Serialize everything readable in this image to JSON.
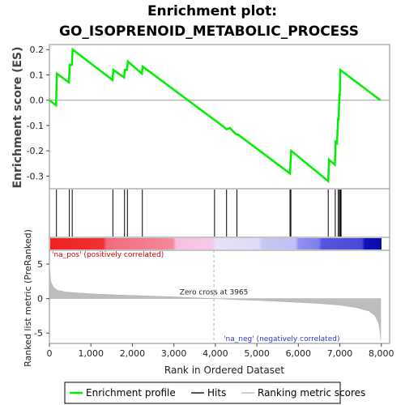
{
  "title_line1": "Enrichment plot:",
  "title_line2": "GO_ISOPRENOID_METABOLIC_PROCESS",
  "colors": {
    "enrichment": "#00ee00",
    "hits": "#000000",
    "metric": "#c0c0c0",
    "pos_text": "#cc0000",
    "neg_text": "#3333cc"
  },
  "chart_data": [
    {
      "type": "line",
      "name": "enrichment-score-panel",
      "ylabel": "Enrichment score (ES)",
      "ylim": [
        -0.35,
        0.22
      ],
      "xlim": [
        0,
        8200
      ],
      "yticks": [
        -0.3,
        -0.2,
        -0.1,
        0.0,
        0.1,
        0.2
      ],
      "yticklabels": [
        "-0.3",
        "-0.2",
        "-0.1",
        "0.0",
        "0.1",
        "0.2"
      ],
      "series": [
        {
          "name": "Enrichment profile",
          "x": [
            0,
            160,
            180,
            470,
            490,
            540,
            560,
            1520,
            1540,
            1800,
            1820,
            1870,
            1890,
            2230,
            2250,
            4200,
            4270,
            4350,
            4500,
            4540,
            5800,
            5810,
            5830,
            6720,
            6740,
            6880,
            6900,
            6930,
            6960,
            6970,
            6990,
            7000,
            7010,
            7980
          ],
          "y": [
            0.0,
            -0.02,
            0.105,
            0.07,
            0.14,
            0.14,
            0.2,
            0.08,
            0.12,
            0.09,
            0.12,
            0.12,
            0.153,
            0.105,
            0.133,
            -0.105,
            -0.115,
            -0.11,
            -0.135,
            -0.135,
            -0.29,
            -0.25,
            -0.2,
            -0.32,
            -0.235,
            -0.255,
            -0.165,
            -0.17,
            -0.07,
            -0.08,
            0.02,
            0.02,
            0.12,
            0.0
          ]
        }
      ]
    },
    {
      "type": "hits",
      "name": "hits-panel",
      "hit_positions": [
        170,
        480,
        550,
        1530,
        1810,
        1880,
        2240,
        3980,
        4270,
        4520,
        5800,
        5820,
        6720,
        6890,
        6960,
        6990,
        7010,
        7030
      ]
    },
    {
      "type": "area",
      "name": "ranked-metric-panel",
      "ylabel": "Ranked list metric (PreRanked)",
      "xlabel": "Rank in Ordered Dataset",
      "ylim": [
        -6.5,
        7
      ],
      "xlim": [
        0,
        8200
      ],
      "yticks": [
        -5,
        0,
        5
      ],
      "yticklabels": [
        "-5",
        "0",
        "5"
      ],
      "xticks": [
        0,
        1000,
        2000,
        3000,
        4000,
        5000,
        6000,
        7000,
        8000
      ],
      "xticklabels": [
        "0",
        "1,000",
        "2,000",
        "3,000",
        "4,000",
        "5,000",
        "6,000",
        "7,000",
        "8,000"
      ],
      "x": [
        0,
        30,
        100,
        200,
        400,
        700,
        1000,
        1500,
        2000,
        2500,
        3000,
        3500,
        3965,
        4500,
        5000,
        5500,
        6000,
        6500,
        7000,
        7400,
        7700,
        7850,
        7930,
        7970,
        7985
      ],
      "y": [
        5.0,
        2.5,
        1.6,
        1.2,
        0.95,
        0.8,
        0.7,
        0.55,
        0.45,
        0.35,
        0.25,
        0.12,
        0.0,
        -0.15,
        -0.25,
        -0.4,
        -0.55,
        -0.7,
        -0.95,
        -1.3,
        -1.8,
        -2.5,
        -3.5,
        -4.8,
        -6.0
      ],
      "zero_cross_label": "Zero cross at 3965",
      "zero_cross": 3965,
      "pos_label": "'na_pos' (positively correlated)",
      "neg_label": "'na_neg' (negatively correlated)"
    }
  ],
  "legend": [
    {
      "label": "Enrichment profile",
      "kind": "line-green"
    },
    {
      "label": "Hits",
      "kind": "line-black"
    },
    {
      "label": "Ranking metric scores",
      "kind": "line-gray"
    }
  ]
}
